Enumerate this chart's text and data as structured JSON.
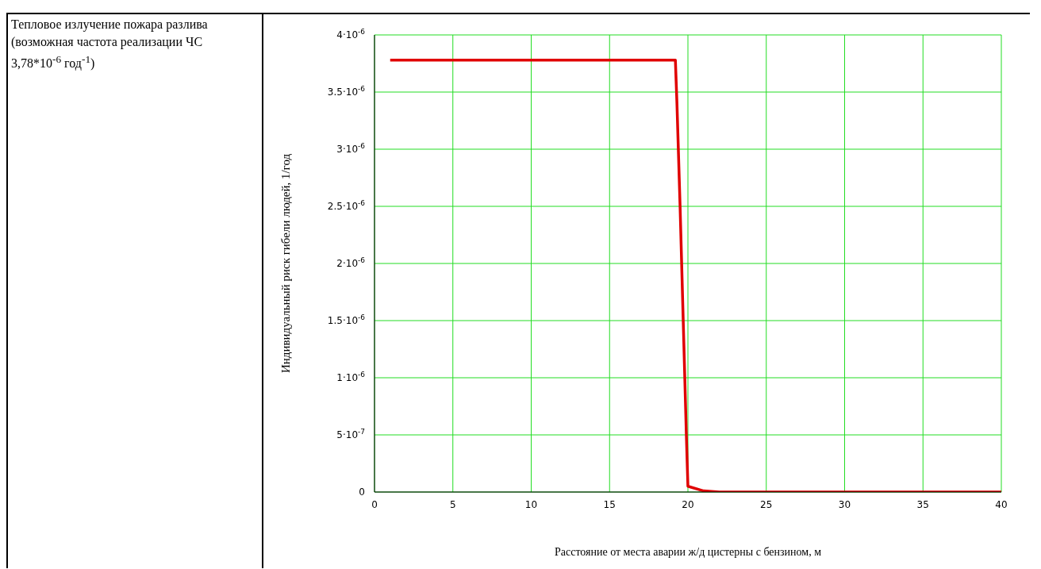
{
  "chart_data": {
    "type": "line",
    "title": "Тепловое излучение пожара разлива (возможная частота реализации ЧС 3,78*10$^{-6}$ год$^{-1}$)",
    "xlabel": "Расстояние от места аварии ж/д цистерны с бензином, м",
    "ylabel": "Индивидуальный риск гибели людей, 1/год",
    "x": [
      1,
      19.2,
      19.3,
      19.5,
      19.7,
      19.9,
      20.0,
      21.0,
      22.0,
      40
    ],
    "series": [
      {
        "color": "#e00000",
        "values": [
          3.78e-06,
          3.78e-06,
          3.4e-06,
          2.5e-06,
          1.5e-06,
          5e-07,
          5e-08,
          1e-08,
          0,
          0
        ]
      }
    ],
    "xlim": [
      0,
      40
    ],
    "xticks": [
      0,
      5,
      10,
      15,
      20,
      25,
      30,
      35,
      40
    ],
    "ylim": [
      0,
      4e-06
    ],
    "yticks": [
      {
        "value": 0,
        "label": "0"
      },
      {
        "value": 5e-07,
        "label": "5·10$^{-7}$"
      },
      {
        "value": 1e-06,
        "label": "1·10$^{-6}$"
      },
      {
        "value": 1.5e-06,
        "label": "1.5·10$^{-6}$"
      },
      {
        "value": 2e-06,
        "label": "2·10$^{-6}$"
      },
      {
        "value": 2.5e-06,
        "label": "2.5·10$^{-6}$"
      },
      {
        "value": 3e-06,
        "label": "3·10$^{-6}$"
      },
      {
        "value": 3.5e-06,
        "label": "3.5·10$^{-6}$"
      },
      {
        "value": 4e-06,
        "label": "4·10$^{-6}$"
      }
    ],
    "grid": true,
    "marker": "none",
    "line_style": "solid",
    "legend": false
  }
}
